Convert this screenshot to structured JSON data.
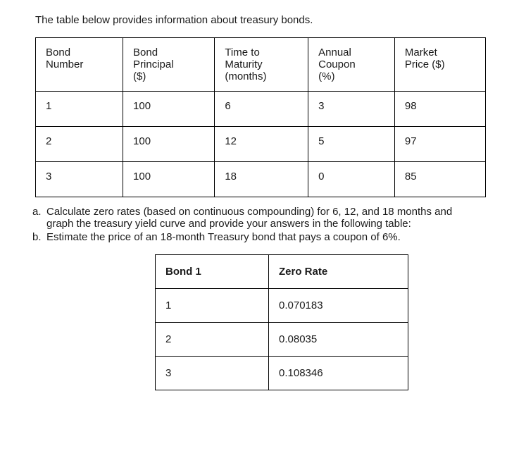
{
  "intro": "The table below provides information about treasury bonds.",
  "bondsTable": {
    "columns": [
      [
        "Bond",
        "Number"
      ],
      [
        "Bond",
        "Principal",
        "($)"
      ],
      [
        "Time to",
        "Maturity",
        "(months)"
      ],
      [
        "Annual",
        "Coupon",
        "(%)"
      ],
      [
        "Market",
        "Price ($)"
      ]
    ],
    "rows": [
      [
        "1",
        "100",
        "6",
        "3",
        "98"
      ],
      [
        "2",
        "100",
        "12",
        "5",
        "97"
      ],
      [
        "3",
        "100",
        "18",
        "0",
        "85"
      ]
    ],
    "colWidths": [
      "100px",
      "110px",
      "120px",
      "110px",
      "110px"
    ],
    "borderColor": "#000000",
    "fontSize": 15
  },
  "questions": {
    "a": {
      "label": "a.",
      "text": "Calculate zero rates (based on continuous compounding) for 6, 12, and 18 months and graph the treasury yield curve and provide your answers in the following table:"
    },
    "b": {
      "label": "b.",
      "text": "Estimate the price of an 18-month Treasury bond that pays a coupon of 6%."
    }
  },
  "zeroTable": {
    "columns": [
      "Bond 1",
      "Zero Rate"
    ],
    "rows": [
      [
        "1",
        "0.070183"
      ],
      [
        "2",
        "0.08035"
      ],
      [
        "3",
        "0.108346"
      ]
    ],
    "colWidths": [
      "140px",
      "180px"
    ],
    "borderColor": "#000000",
    "fontSize": 15
  },
  "styling": {
    "background": "#ffffff",
    "textColor": "#1a1a1a",
    "fontFamily": "Arial, sans-serif"
  }
}
